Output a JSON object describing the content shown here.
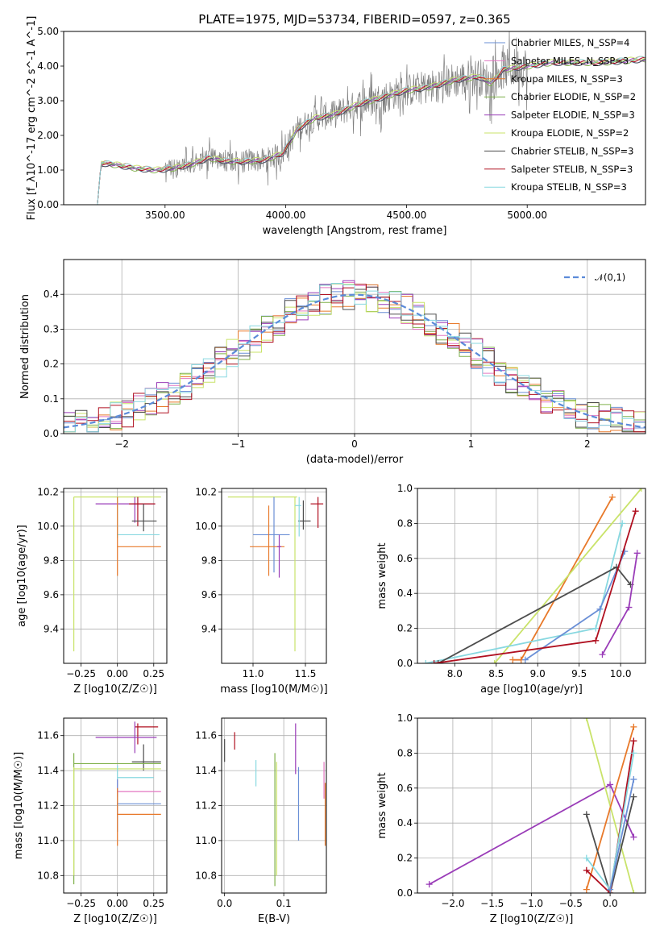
{
  "figure_title": "PLATE=1975, MJD=53734, FIBERID=0597, z=0.365",
  "colors": {
    "Chabrier MILES": "#6a8fd6",
    "Salpeter MILES": "#e377c2",
    "Kroupa MILES": "#e8792a",
    "Chabrier ELODIE": "#7fb04a",
    "Salpeter ELODIE": "#9a3cb8",
    "Kroupa ELODIE": "#c9e36a",
    "Chabrier STELIB": "#4d4d4d",
    "Salpeter STELIB": "#b01020",
    "Kroupa STELIB": "#88d8e0",
    "data": "#808080"
  },
  "chart_data": [
    {
      "id": "spectrum",
      "type": "line",
      "xlabel": "wavelength [Angstrom, rest frame]",
      "ylabel": "Flux [f_λ10^-17 erg cm^-2 s^-1 A^-1]",
      "xlim": [
        3080,
        5490
      ],
      "ylim": [
        0,
        5
      ],
      "xticks": [
        3500,
        4000,
        4500,
        5000
      ],
      "yticks": [
        0,
        1,
        2,
        3,
        4,
        5
      ],
      "legend": {
        "placement": "upper-right",
        "entries": [
          {
            "name": "Chabrier MILES, N_SSP=4"
          },
          {
            "name": "Salpeter MILES, N_SSP=3"
          },
          {
            "name": "Kroupa MILES, N_SSP=3"
          },
          {
            "name": "Chabrier ELODIE, N_SSP=2"
          },
          {
            "name": "Salpeter ELODIE, N_SSP=3"
          },
          {
            "name": "Kroupa ELODIE, N_SSP=2"
          },
          {
            "name": "Chabrier STELIB, N_SSP=3"
          },
          {
            "name": "Salpeter STELIB, N_SSP=3"
          },
          {
            "name": "Kroupa STELIB, N_SSP=3"
          }
        ]
      },
      "model_continuum": {
        "x": [
          3220,
          3235,
          3300,
          3380,
          3460,
          3530,
          3600,
          3680,
          3760,
          3840,
          3920,
          3990,
          4050,
          4120,
          4200,
          4300,
          4400,
          4500,
          4600,
          4700,
          4800,
          4850,
          4900,
          5000,
          5100,
          5200,
          5300,
          5400,
          5490
        ],
        "y": [
          0,
          1.2,
          1.15,
          1.05,
          1.0,
          1.05,
          1.15,
          1.35,
          1.25,
          1.25,
          1.3,
          1.5,
          2.2,
          2.5,
          2.6,
          2.9,
          3.1,
          3.3,
          3.4,
          3.6,
          3.7,
          3.5,
          3.9,
          4.0,
          4.1,
          4.1,
          4.1,
          4.15,
          4.2
        ]
      },
      "data_noisy_from": 3500,
      "data_noisy_to": 5000
    },
    {
      "id": "residual-histogram",
      "type": "bar",
      "xlabel": "(data-model)/error",
      "ylabel": "Normed distribution",
      "xlim": [
        -2.5,
        2.5
      ],
      "ylim": [
        0,
        0.5
      ],
      "xticks": [
        -2,
        -1,
        0,
        1,
        2
      ],
      "yticks": [
        0.0,
        0.1,
        0.2,
        0.3,
        0.4
      ],
      "legend": {
        "placement": "upper-right",
        "entries": [
          {
            "name": "𝒩(0,1)"
          }
        ]
      },
      "gaussian": {
        "mean": 0,
        "sigma": 1
      },
      "bin_width": 0.1
    },
    {
      "id": "age-vs-Z",
      "type": "scatter",
      "xlabel": "Z [log10(Z/Z☉)]",
      "ylabel": "age [log10(age/yr)]",
      "xlim": [
        -0.37,
        0.34
      ],
      "ylim": [
        9.2,
        10.22
      ],
      "xticks": [
        -0.25,
        0.0,
        0.25
      ],
      "yticks": [
        9.4,
        9.6,
        9.8,
        10.0,
        10.2
      ],
      "points": [
        {
          "series": "Kroupa ELODIE",
          "x": -0.3,
          "y": 10.17,
          "x0": -0.3,
          "x1": 0.3,
          "y0": 9.27,
          "y1": 10.17
        },
        {
          "series": "Salpeter ELODIE",
          "x": 0.12,
          "y": 10.13,
          "x0": -0.15,
          "x1": 0.26,
          "y0": 10.02,
          "y1": 10.17
        },
        {
          "series": "Salpeter STELIB",
          "x": 0.14,
          "y": 10.13,
          "x0": 0.08,
          "x1": 0.26,
          "y0": 10.0,
          "y1": 10.17
        },
        {
          "series": "Chabrier STELIB",
          "x": 0.18,
          "y": 10.03,
          "x0": 0.1,
          "x1": 0.27,
          "y0": 9.97,
          "y1": 10.13
        },
        {
          "series": "Kroupa STELIB",
          "x": 0.0,
          "y": 9.95,
          "x0": 0.0,
          "x1": 0.29,
          "y0": 9.93,
          "y1": 10.17
        },
        {
          "series": "Kroupa MILES",
          "x": 0.0,
          "y": 9.88,
          "x0": 0.0,
          "x1": 0.3,
          "y0": 9.71,
          "y1": 10.17
        }
      ]
    },
    {
      "id": "age-vs-mass",
      "type": "scatter",
      "xlabel": "mass [log10(M/M☉)]",
      "ylabel": "",
      "xlim": [
        10.7,
        11.7
      ],
      "ylim": [
        9.2,
        10.22
      ],
      "xticks": [
        11.0,
        11.5
      ],
      "yticks": [
        9.4,
        9.6,
        9.8,
        10.0,
        10.2
      ],
      "points": [
        {
          "series": "Kroupa ELODIE",
          "x": 11.4,
          "y": 10.17,
          "x0": 10.76,
          "x1": 11.42,
          "y0": 9.27,
          "y1": 10.17
        },
        {
          "series": "Salpeter STELIB",
          "x": 11.62,
          "y": 10.13,
          "x0": 11.55,
          "x1": 11.67,
          "y0": 9.99,
          "y1": 10.17
        },
        {
          "series": "Chabrier STELIB",
          "x": 11.48,
          "y": 10.03,
          "x0": 11.43,
          "x1": 11.55,
          "y0": 9.98,
          "y1": 10.15
        },
        {
          "series": "Kroupa STELIB",
          "x": 11.44,
          "y": 10.12,
          "x0": 11.4,
          "x1": 11.46,
          "y0": 9.94,
          "y1": 10.17
        },
        {
          "series": "Chabrier MILES",
          "x": 11.2,
          "y": 9.95,
          "x0": 11.0,
          "x1": 11.35,
          "y0": 9.73,
          "y1": 10.17
        },
        {
          "series": "Kroupa MILES",
          "x": 11.15,
          "y": 9.88,
          "x0": 10.97,
          "x1": 11.3,
          "y0": 9.71,
          "y1": 10.12
        },
        {
          "series": "Salpeter ELODIE",
          "x": 11.25,
          "y": 9.88,
          "x0": 11.23,
          "x1": 11.27,
          "y0": 9.7,
          "y1": 9.95
        }
      ]
    },
    {
      "id": "weight-vs-age",
      "type": "line",
      "xlabel": "age [log10(age/yr)]",
      "ylabel": "mass weight",
      "xlim": [
        7.55,
        10.3
      ],
      "ylim": [
        0,
        1
      ],
      "xticks": [
        8.0,
        8.5,
        9.0,
        9.5,
        10.0
      ],
      "yticks": [
        0.0,
        0.2,
        0.4,
        0.6,
        0.8,
        1.0
      ],
      "series": [
        {
          "name": "Kroupa MILES",
          "x": [
            8.7,
            8.8,
            9.9
          ],
          "y": [
            0.02,
            0.02,
            0.95
          ]
        },
        {
          "name": "Kroupa ELODIE",
          "x": [
            8.48,
            10.25
          ],
          "y": [
            0.0,
            1.0
          ]
        },
        {
          "name": "Kroupa STELIB",
          "x": [
            7.65,
            9.7,
            10.02
          ],
          "y": [
            0.0,
            0.2,
            0.8
          ]
        },
        {
          "name": "Chabrier MILES",
          "x": [
            8.85,
            9.75,
            10.05
          ],
          "y": [
            0.02,
            0.31,
            0.64
          ]
        },
        {
          "name": "Chabrier STELIB",
          "x": [
            7.8,
            9.95,
            10.12
          ],
          "y": [
            0.0,
            0.55,
            0.45
          ]
        },
        {
          "name": "Salpeter STELIB",
          "x": [
            7.75,
            9.7,
            10.18
          ],
          "y": [
            0.0,
            0.13,
            0.87
          ]
        },
        {
          "name": "Salpeter ELODIE",
          "x": [
            9.78,
            10.1,
            10.2
          ],
          "y": [
            0.05,
            0.32,
            0.63
          ]
        }
      ]
    },
    {
      "id": "mass-vs-Z",
      "type": "scatter",
      "xlabel": "Z [log10(Z/Z☉)]",
      "ylabel": "mass [log10(M/M☉)]",
      "xlim": [
        -0.37,
        0.34
      ],
      "ylim": [
        10.7,
        11.7
      ],
      "xticks": [
        -0.25,
        0.0,
        0.25
      ],
      "yticks": [
        10.8,
        11.0,
        11.2,
        11.4,
        11.6
      ],
      "points": [
        {
          "series": "Salpeter STELIB",
          "x": 0.14,
          "y": 11.65,
          "x0": 0.12,
          "x1": 0.28,
          "y0": 11.55,
          "y1": 11.67
        },
        {
          "series": "Salpeter ELODIE",
          "x": 0.12,
          "y": 11.59,
          "x0": -0.15,
          "x1": 0.27,
          "y0": 11.5,
          "y1": 11.68
        },
        {
          "series": "Chabrier STELIB",
          "x": 0.18,
          "y": 11.45,
          "x0": 0.1,
          "x1": 0.3,
          "y0": 11.4,
          "y1": 11.55
        },
        {
          "series": "Chabrier ELODIE",
          "x": -0.3,
          "y": 11.44,
          "x0": -0.3,
          "x1": 0.3,
          "y0": 10.75,
          "y1": 11.5
        },
        {
          "series": "Kroupa ELODIE",
          "x": -0.3,
          "y": 11.41,
          "x0": -0.3,
          "x1": 0.3,
          "y0": 10.8,
          "y1": 11.42
        },
        {
          "series": "Kroupa STELIB",
          "x": 0.0,
          "y": 11.36,
          "x0": 0.0,
          "x1": 0.25,
          "y0": 11.31,
          "y1": 11.43
        },
        {
          "series": "Salpeter MILES",
          "x": 0.0,
          "y": 11.28,
          "x0": 0.0,
          "x1": 0.3,
          "y0": 11.25,
          "y1": 11.35
        },
        {
          "series": "Chabrier MILES",
          "x": 0.0,
          "y": 11.21,
          "x0": 0.0,
          "x1": 0.3,
          "y0": 11.05,
          "y1": 11.35
        },
        {
          "series": "Kroupa MILES",
          "x": 0.0,
          "y": 11.15,
          "x0": 0.0,
          "x1": 0.3,
          "y0": 10.97,
          "y1": 11.3
        }
      ]
    },
    {
      "id": "mass-vs-EBV",
      "type": "scatter",
      "xlabel": "E(B-V)",
      "ylabel": "",
      "xlim": [
        -0.005,
        0.172
      ],
      "ylim": [
        10.7,
        11.7
      ],
      "xticks": [
        0.0,
        0.1
      ],
      "yticks": [
        10.8,
        11.0,
        11.2,
        11.4,
        11.6
      ],
      "points": [
        {
          "series": "Chabrier STELIB",
          "x": 0.0,
          "y0": 11.45,
          "y1": 11.58
        },
        {
          "series": "Salpeter STELIB",
          "x": 0.017,
          "y0": 11.52,
          "y1": 11.62
        },
        {
          "series": "Kroupa STELIB",
          "x": 0.053,
          "y0": 11.31,
          "y1": 11.46
        },
        {
          "series": "Chabrier ELODIE",
          "x": 0.085,
          "y0": 10.74,
          "y1": 11.5
        },
        {
          "series": "Kroupa ELODIE",
          "x": 0.088,
          "y0": 10.8,
          "y1": 11.45
        },
        {
          "series": "Salpeter ELODIE",
          "x": 0.12,
          "y0": 11.38,
          "y1": 11.67
        },
        {
          "series": "Chabrier MILES",
          "x": 0.125,
          "y0": 11.0,
          "y1": 11.42
        },
        {
          "series": "Salpeter MILES",
          "x": 0.168,
          "y0": 11.24,
          "y1": 11.45
        },
        {
          "series": "Kroupa MILES",
          "x": 0.17,
          "y0": 10.97,
          "y1": 11.33
        }
      ]
    },
    {
      "id": "weight-vs-Z",
      "type": "line",
      "xlabel": "Z [log10(Z/Z☉)]",
      "ylabel": "mass weight",
      "xlim": [
        -2.45,
        0.45
      ],
      "ylim": [
        0,
        1
      ],
      "xticks": [
        -2.0,
        -1.5,
        -1.0,
        -0.5,
        0.0
      ],
      "yticks": [
        0.0,
        0.2,
        0.4,
        0.6,
        0.8,
        1.0
      ],
      "series": [
        {
          "name": "Salpeter ELODIE",
          "x": [
            -2.3,
            0.0,
            0.3
          ],
          "y": [
            0.05,
            0.62,
            0.32
          ]
        },
        {
          "name": "Kroupa ELODIE",
          "x": [
            -0.3,
            0.3
          ],
          "y": [
            1.0,
            0.0
          ]
        },
        {
          "name": "Kroupa MILES",
          "x": [
            -0.3,
            0.3
          ],
          "y": [
            0.02,
            0.95
          ]
        },
        {
          "name": "Chabrier STELIB",
          "x": [
            -0.3,
            0.0,
            0.3
          ],
          "y": [
            0.45,
            0.0,
            0.55
          ]
        },
        {
          "name": "Salpeter STELIB",
          "x": [
            -0.3,
            0.0,
            0.3
          ],
          "y": [
            0.13,
            0.0,
            0.87
          ]
        },
        {
          "name": "Kroupa STELIB",
          "x": [
            -0.3,
            0.0,
            0.3
          ],
          "y": [
            0.2,
            0.02,
            0.8
          ]
        },
        {
          "name": "Chabrier MILES",
          "x": [
            0.0,
            0.3
          ],
          "y": [
            0.02,
            0.65
          ]
        }
      ]
    }
  ]
}
